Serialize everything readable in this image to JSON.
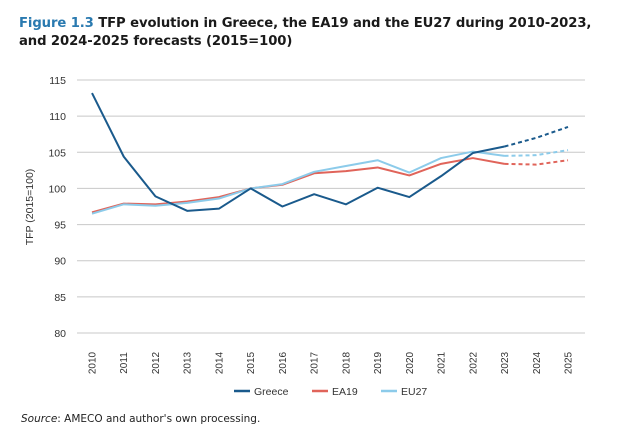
{
  "figure": {
    "label": "Figure 1.3",
    "title_rest": " TFP evolution in Greece, the EA19 and the EU27 during 2010-2023, and 2024-2025 forecasts (2015=100)"
  },
  "source": {
    "prefix": "Source",
    "text": ": AMECO and author's own processing."
  },
  "colors": {
    "title_accent": "#2a7ab0",
    "greece": "#1a5a8c",
    "ea19": "#e0645a",
    "eu27": "#8ccbea",
    "grid": "#c8c8c8"
  },
  "chart_data": {
    "type": "line",
    "title": "TFP evolution in Greece, the EA19 and the EU27 during 2010-2023, and 2024-2025 forecasts (2015=100)",
    "xlabel": "",
    "ylabel": "TFP (2015=100)",
    "ylim": [
      80,
      115
    ],
    "yticks": [
      80,
      85,
      90,
      95,
      100,
      105,
      110,
      115
    ],
    "grid": true,
    "legend_position": "bottom",
    "x": [
      "2010",
      "2011",
      "2012",
      "2013",
      "2014",
      "2015",
      "2016",
      "2017",
      "2018",
      "2019",
      "2020",
      "2021",
      "2022",
      "2023",
      "2024",
      "2025"
    ],
    "forecast_from_index": 13,
    "series": [
      {
        "name": "Greece",
        "color": "#1a5a8c",
        "values": [
          113.2,
          104.4,
          98.9,
          96.9,
          97.2,
          100.0,
          97.5,
          99.2,
          97.8,
          100.1,
          98.8,
          101.7,
          104.9,
          105.8,
          107.0,
          108.5
        ]
      },
      {
        "name": "EA19",
        "color": "#e0645a",
        "values": [
          96.7,
          97.9,
          97.8,
          98.2,
          98.8,
          100.0,
          100.5,
          102.1,
          102.4,
          102.9,
          101.8,
          103.4,
          104.2,
          103.4,
          103.3,
          103.9
        ]
      },
      {
        "name": "EU27",
        "color": "#8ccbea",
        "values": [
          96.5,
          97.8,
          97.6,
          98.0,
          98.6,
          100.0,
          100.6,
          102.3,
          103.1,
          103.9,
          102.2,
          104.2,
          105.1,
          104.5,
          104.6,
          105.3
        ]
      }
    ]
  }
}
